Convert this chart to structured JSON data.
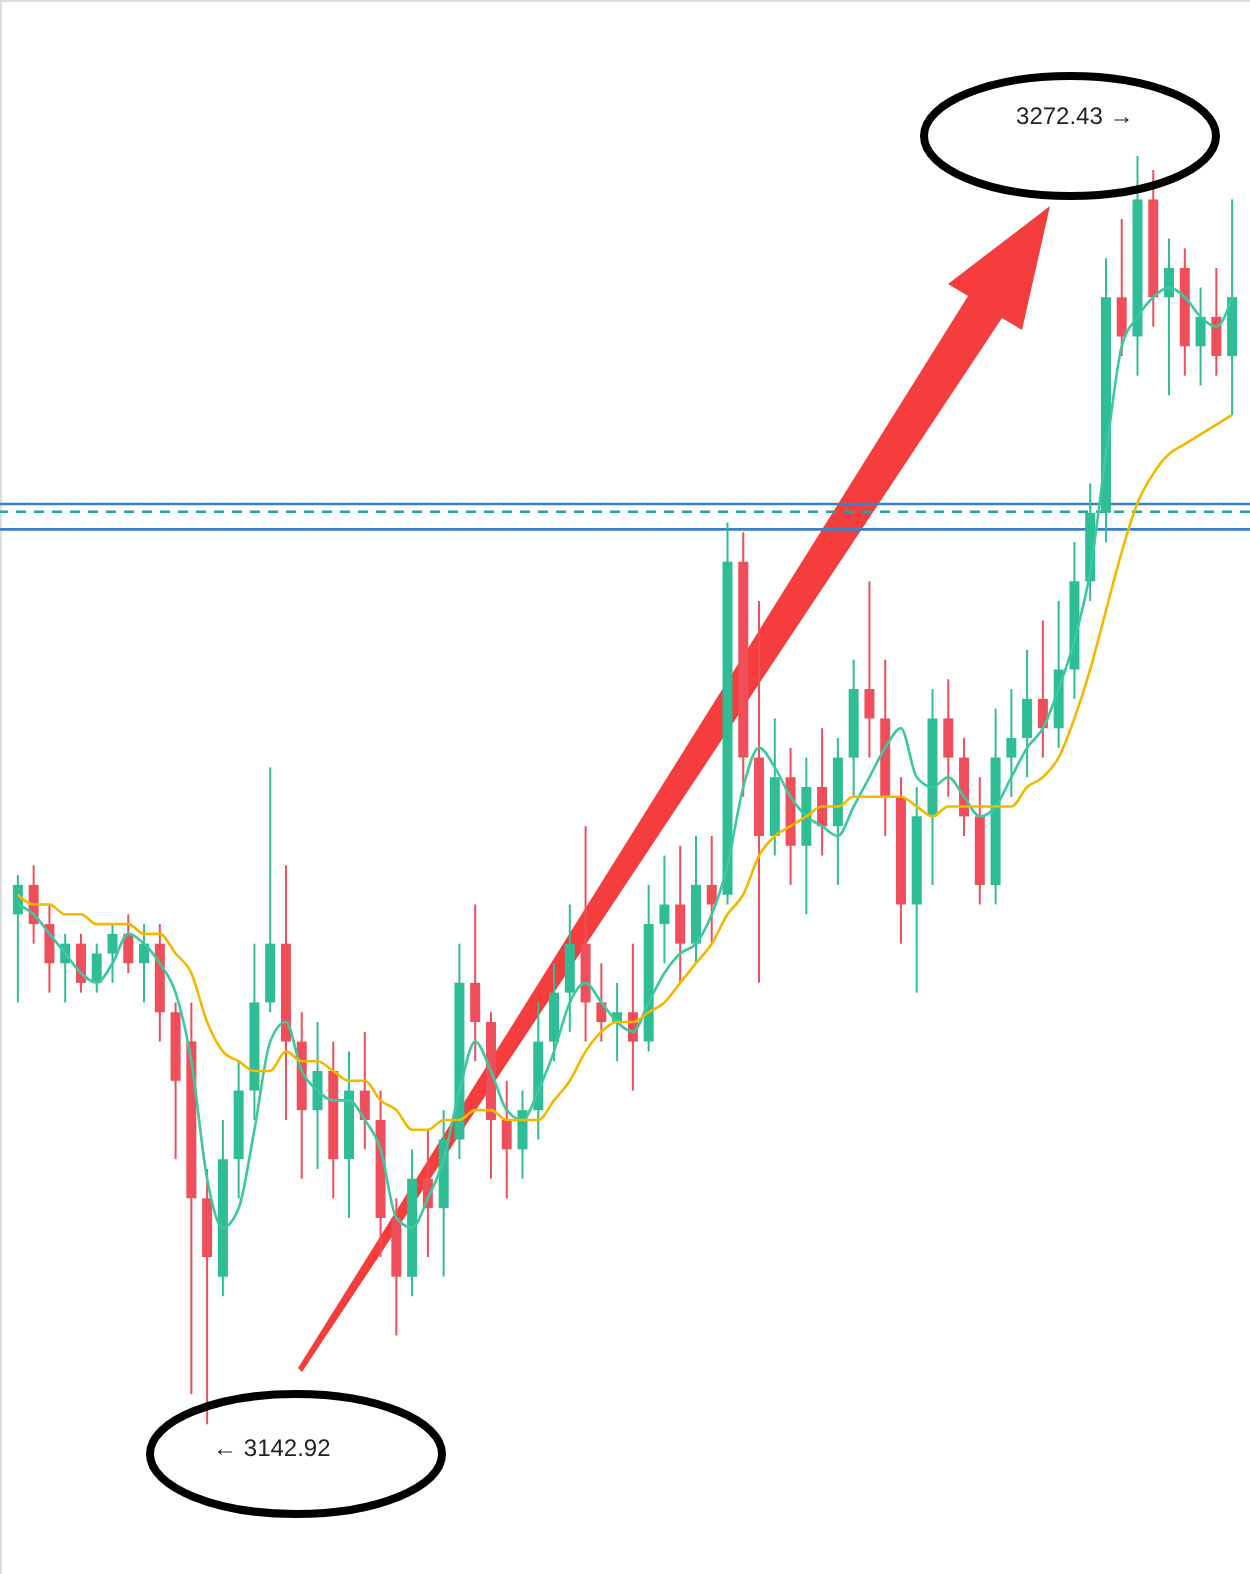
{
  "chart_data": {
    "type": "candlestick",
    "categories": [
      null,
      null,
      null,
      null,
      null,
      null,
      null,
      null,
      null,
      null,
      null,
      null,
      null,
      null,
      null,
      null,
      null,
      null,
      null,
      null,
      null,
      null,
      null,
      null,
      null,
      null,
      null,
      null,
      null,
      null,
      null,
      null,
      null,
      null,
      null,
      null,
      null,
      null,
      null,
      null,
      null,
      null,
      null,
      null,
      null,
      null,
      null,
      null,
      null,
      null,
      null,
      null,
      null,
      null,
      null,
      null,
      null,
      null,
      null,
      null,
      null,
      null,
      null,
      null,
      null,
      null,
      null,
      null,
      null,
      null,
      null,
      null,
      null,
      null,
      null,
      null,
      null,
      null
    ],
    "ohlc": [
      [
        3195,
        3199,
        3186,
        3198
      ],
      [
        3198,
        3200,
        3192,
        3194
      ],
      [
        3194,
        3196,
        3187,
        3190
      ],
      [
        3190,
        3193,
        3186,
        3192
      ],
      [
        3192,
        3193,
        3187,
        3188
      ],
      [
        3188,
        3192,
        3187,
        3191
      ],
      [
        3191,
        3194,
        3188,
        3193
      ],
      [
        3193,
        3195,
        3189,
        3190
      ],
      [
        3190,
        3194,
        3186,
        3192
      ],
      [
        3192,
        3194,
        3182,
        3185
      ],
      [
        3185,
        3186,
        3170,
        3178
      ],
      [
        3182,
        3186,
        3146,
        3166
      ],
      [
        3166,
        3169,
        3142.92,
        3160
      ],
      [
        3158,
        3174,
        3156,
        3170
      ],
      [
        3170,
        3180,
        3166,
        3177
      ],
      [
        3177,
        3192,
        3174,
        3186
      ],
      [
        3186,
        3210,
        3185,
        3192
      ],
      [
        3192,
        3200,
        3174,
        3182
      ],
      [
        3182,
        3185,
        3168,
        3175
      ],
      [
        3175,
        3184,
        3169,
        3179
      ],
      [
        3179,
        3182,
        3166,
        3170
      ],
      [
        3170,
        3181,
        3164,
        3177
      ],
      [
        3177,
        3183,
        3171,
        3174
      ],
      [
        3174,
        3177,
        3160,
        3164
      ],
      [
        3164,
        3166,
        3152,
        3158
      ],
      [
        3158,
        3171,
        3156,
        3168
      ],
      [
        3168,
        3173,
        3160,
        3165
      ],
      [
        3165,
        3175,
        3158,
        3172
      ],
      [
        3172,
        3192,
        3170,
        3188
      ],
      [
        3188,
        3196,
        3180,
        3184
      ],
      [
        3184,
        3185,
        3168,
        3174
      ],
      [
        3174,
        3178,
        3166,
        3171
      ],
      [
        3171,
        3177,
        3168,
        3175
      ],
      [
        3175,
        3186,
        3172,
        3182
      ],
      [
        3182,
        3190,
        3180,
        3187
      ],
      [
        3187,
        3196,
        3183,
        3192
      ],
      [
        3192,
        3204,
        3182,
        3186
      ],
      [
        3186,
        3190,
        3182,
        3184
      ],
      [
        3184,
        3188,
        3180,
        3185
      ],
      [
        3185,
        3192,
        3177,
        3182
      ],
      [
        3182,
        3198,
        3181,
        3194
      ],
      [
        3194,
        3201,
        3190,
        3196
      ],
      [
        3196,
        3202,
        3188,
        3192
      ],
      [
        3192,
        3203,
        3190,
        3198
      ],
      [
        3198,
        3203,
        3192,
        3196
      ],
      [
        3197,
        3235,
        3196,
        3231
      ],
      [
        3231,
        3234,
        3207,
        3211
      ],
      [
        3211,
        3227,
        3188,
        3203
      ],
      [
        3203,
        3215,
        3201,
        3209
      ],
      [
        3209,
        3212,
        3198,
        3202
      ],
      [
        3202,
        3211,
        3195,
        3208
      ],
      [
        3208,
        3214,
        3201,
        3204
      ],
      [
        3204,
        3213,
        3198,
        3211
      ],
      [
        3211,
        3221,
        3207,
        3218
      ],
      [
        3218,
        3229,
        3211,
        3215
      ],
      [
        3215,
        3221,
        3203,
        3207
      ],
      [
        3207,
        3209,
        3192,
        3196
      ],
      [
        3196,
        3208,
        3187,
        3205
      ],
      [
        3205,
        3218,
        3198,
        3215
      ],
      [
        3215,
        3219,
        3207,
        3211
      ],
      [
        3211,
        3213,
        3203,
        3205
      ],
      [
        3205,
        3209,
        3196,
        3198
      ],
      [
        3198,
        3216,
        3196,
        3211
      ],
      [
        3211,
        3218,
        3207,
        3213
      ],
      [
        3213,
        3222,
        3209,
        3217
      ],
      [
        3217,
        3225,
        3211,
        3214
      ],
      [
        3214,
        3227,
        3212,
        3220
      ],
      [
        3220,
        3233,
        3217,
        3229
      ],
      [
        3229,
        3239,
        3227,
        3236
      ],
      [
        3236,
        3262,
        3233,
        3258
      ],
      [
        3258,
        3266,
        3252,
        3254
      ],
      [
        3254,
        3272.43,
        3250,
        3268
      ],
      [
        3268,
        3271,
        3255,
        3258
      ],
      [
        3258,
        3264,
        3248,
        3261
      ],
      [
        3261,
        3263,
        3250,
        3253
      ],
      [
        3253,
        3259,
        3249,
        3256
      ],
      [
        3256,
        3261,
        3250,
        3252
      ],
      [
        3252,
        3268,
        3246,
        3258
      ]
    ],
    "series": [
      {
        "type": "line",
        "color": "#3cc8a0",
        "values": [
          3196,
          3195,
          3193,
          3191,
          3189,
          3188,
          3190,
          3193,
          3192,
          3190,
          3187,
          3180,
          3168,
          3163,
          3165,
          3173,
          3182,
          3184,
          3179,
          3177,
          3176,
          3176,
          3174,
          3171,
          3164,
          3163,
          3166,
          3170,
          3177,
          3182,
          3179,
          3175,
          3174,
          3177,
          3181,
          3186,
          3188,
          3186,
          3184,
          3183,
          3186,
          3189,
          3191,
          3192,
          3195,
          3200,
          3208,
          3212,
          3210,
          3207,
          3205,
          3204,
          3203,
          3206,
          3209,
          3212,
          3214,
          3209,
          3208,
          3209,
          3207,
          3205,
          3206,
          3209,
          3212,
          3214,
          3218,
          3223,
          3230,
          3242,
          3253,
          3256,
          3258,
          3259,
          3258,
          3256,
          3255,
          3258
        ]
      },
      {
        "type": "line",
        "color": "#f5b800",
        "values": [
          3197,
          3196,
          3196,
          3195,
          3195,
          3194,
          3194,
          3194,
          3193,
          3193,
          3191,
          3189,
          3184,
          3181,
          3180,
          3179,
          3179,
          3181,
          3180,
          3180,
          3179,
          3178,
          3178,
          3176,
          3175,
          3173,
          3173,
          3174,
          3174,
          3175,
          3175,
          3174,
          3174,
          3174,
          3176,
          3178,
          3181,
          3183,
          3184,
          3184,
          3185,
          3186,
          3188,
          3190,
          3192,
          3195,
          3197,
          3201,
          3203,
          3204,
          3205,
          3206,
          3206,
          3207,
          3207,
          3207,
          3207,
          3206,
          3205,
          3206,
          3206,
          3206,
          3206,
          3206,
          3208,
          3209,
          3211,
          3215,
          3220,
          3226,
          3232,
          3237,
          3240,
          3242,
          3243,
          3244,
          3245,
          3246
        ]
      }
    ],
    "ref_lines": [
      {
        "axis": "y",
        "value": 3236.9,
        "color": "#3b82c4",
        "line_style": "solid"
      },
      {
        "axis": "y",
        "value": 3236.1,
        "color": "#26a69a",
        "line_style": "dashed"
      },
      {
        "axis": "y",
        "value": 3234.3,
        "color": "#3b82c4",
        "line_style": "solid"
      }
    ],
    "annotations": [
      "3272.43 →",
      "← 3142.92"
    ],
    "tick_labels": false
  }
}
